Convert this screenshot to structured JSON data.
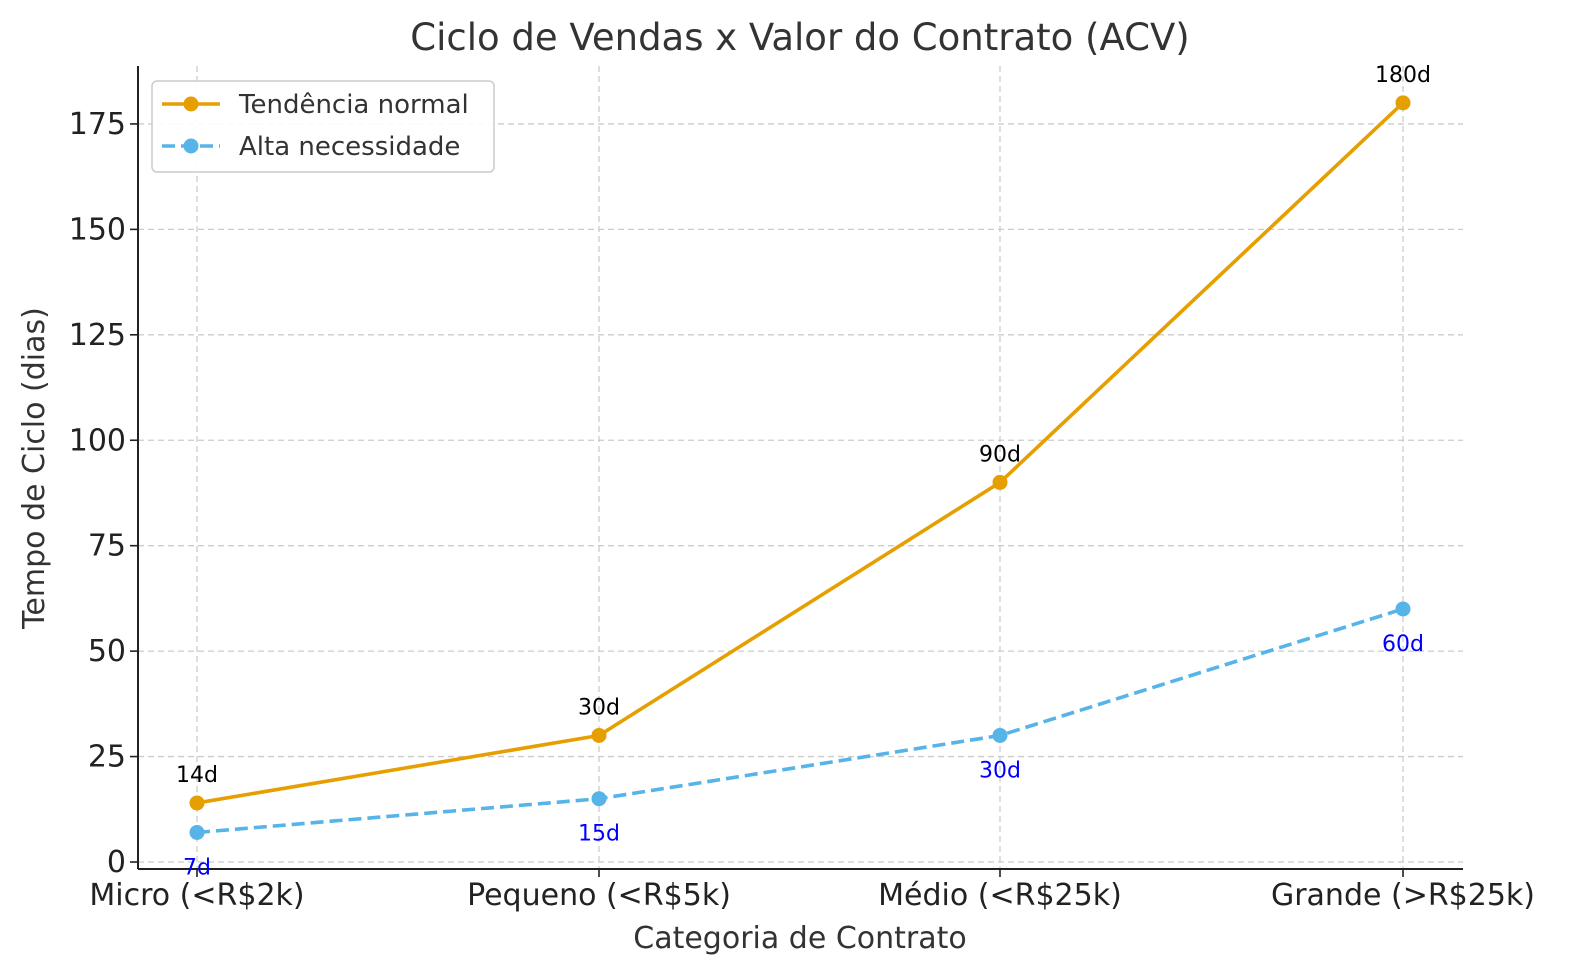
{
  "chart_data": {
    "type": "line",
    "title": "Ciclo de Vendas x Valor do Contrato (ACV)",
    "xlabel": "Categoria de Contrato",
    "ylabel": "Tempo de Ciclo (dias)",
    "categories": [
      "Micro (<R$2k)",
      "Pequeno (<R$5k)",
      "Médio (<R$25k)",
      "Grande (>R$25k)"
    ],
    "ylim": [
      0,
      180
    ],
    "yticks": [
      0,
      25,
      50,
      75,
      100,
      125,
      150,
      175
    ],
    "grid": true,
    "legend_position": "top-left",
    "series": [
      {
        "name": "Tendência normal",
        "values": [
          14,
          30,
          90,
          180
        ],
        "labels": [
          "14d",
          "30d",
          "90d",
          "180d"
        ],
        "color": "#E69F00",
        "label_color": "#000000",
        "style": "solid",
        "label_position": "above"
      },
      {
        "name": "Alta necessidade",
        "values": [
          7,
          15,
          30,
          60
        ],
        "labels": [
          "7d",
          "15d",
          "30d",
          "60d"
        ],
        "color": "#56B4E9",
        "label_color": "#0000ff",
        "style": "dashed",
        "label_position": "below"
      }
    ]
  }
}
